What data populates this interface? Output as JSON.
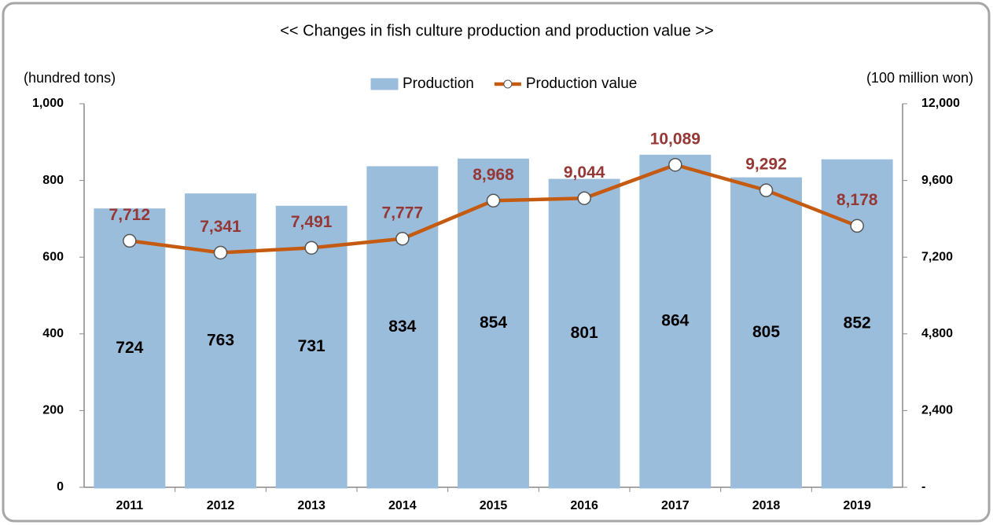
{
  "chart_data": {
    "type": "bar",
    "title": "<< Changes in fish culture production and production value >>",
    "y_label": "(hundred tons)",
    "y2_label": "(100 million won)",
    "categories": [
      "2011",
      "2012",
      "2013",
      "2014",
      "2015",
      "2016",
      "2017",
      "2018",
      "2019"
    ],
    "series": [
      {
        "name": "Production",
        "type": "bar",
        "color": "#a9cdef",
        "values": [
          724,
          763,
          731,
          834,
          854,
          801,
          864,
          805,
          852
        ]
      },
      {
        "name": "Production value",
        "type": "line",
        "axis": "y2",
        "color": "#c55a11",
        "values": [
          7712,
          7341,
          7491,
          7777,
          8968,
          9044,
          10089,
          9292,
          8178
        ],
        "value_labels": [
          "7,712",
          "7,341",
          "7,491",
          "7,777",
          "8,968",
          "9,044",
          "10,089",
          "9,292",
          "8,178"
        ]
      }
    ],
    "ylim": [
      0,
      1000
    ],
    "yticks": [
      0,
      200,
      400,
      600,
      800,
      {
        "value": 1000,
        "label": "1,000"
      }
    ],
    "y2lim": [
      0,
      12000
    ],
    "y2ticks": [
      {
        "value": 0,
        "label": "-"
      },
      {
        "value": 2400,
        "label": "2,400"
      },
      {
        "value": 4800,
        "label": "4,800"
      },
      {
        "value": 7200,
        "label": "7,200"
      },
      {
        "value": 9600,
        "label": "9,600"
      },
      {
        "value": 12000,
        "label": "12,000"
      }
    ],
    "legend": "top"
  }
}
